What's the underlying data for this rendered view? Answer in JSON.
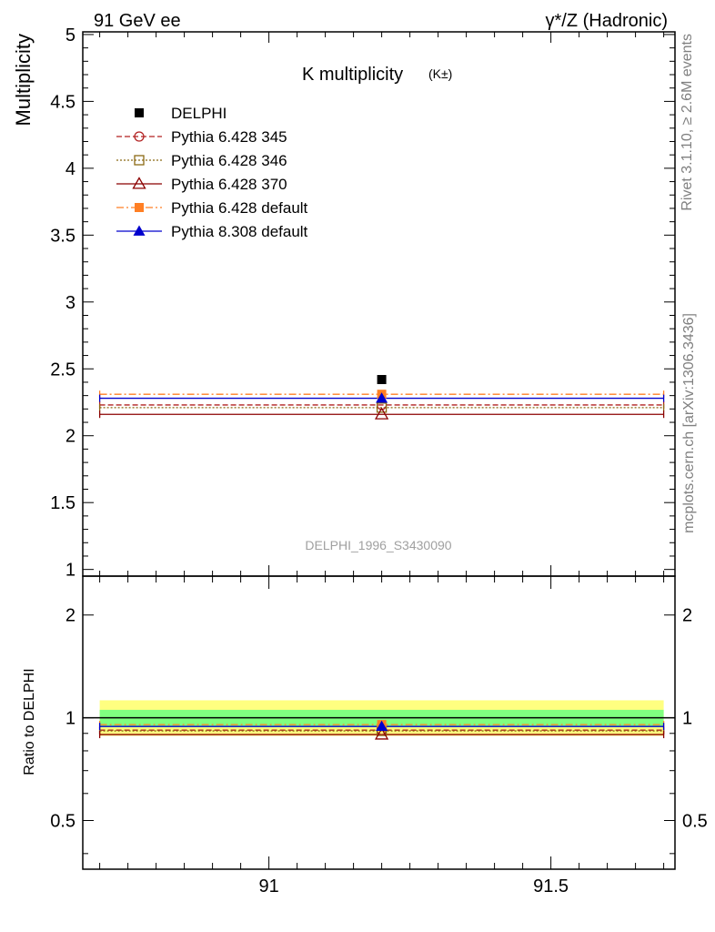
{
  "header": {
    "left": "91 GeV ee",
    "right": "γ*/Z (Hadronic)"
  },
  "side_text": {
    "rivet": "Rivet 3.1.10, ≥ 2.6M events",
    "mcplots": "mcplots.cern.ch [arXiv:1306.3436]"
  },
  "chart_data": [
    {
      "type": "scatter",
      "title": "K multiplicity",
      "title_suffix": "(K±)",
      "watermark": "DELPHI_1996_S3430090",
      "ylabel": "Multiplicity",
      "xlim": [
        90.67,
        91.72
      ],
      "ylim": [
        0.95,
        5.02
      ],
      "y_ticks": [
        "1",
        "1.5",
        "2",
        "2.5",
        "3",
        "3.5",
        "4",
        "4.5",
        "5"
      ],
      "x_bin": [
        90.7,
        91.7
      ],
      "x_center": 91.2,
      "legend_position": "top-left",
      "series": [
        {
          "name": "DELPHI",
          "value": 2.42,
          "color": "#000000",
          "marker": "filled-square",
          "line": "none"
        },
        {
          "name": "Pythia 6.428 345",
          "value": 2.23,
          "color": "#b22222",
          "marker": "open-circle",
          "line": "dashed"
        },
        {
          "name": "Pythia 6.428 346",
          "value": 2.21,
          "color": "#8b6914",
          "marker": "open-square",
          "line": "dotted"
        },
        {
          "name": "Pythia 6.428 370",
          "value": 2.16,
          "color": "#8b0000",
          "marker": "open-triangle",
          "line": "solid"
        },
        {
          "name": "Pythia 6.428 default",
          "value": 2.31,
          "color": "#ff7f24",
          "marker": "filled-square",
          "line": "dashdot"
        },
        {
          "name": "Pythia 8.308 default",
          "value": 2.28,
          "color": "#0000cd",
          "marker": "filled-triangle",
          "line": "solid"
        }
      ]
    },
    {
      "type": "scatter",
      "ylabel": "Ratio to DELPHI",
      "xlim": [
        90.67,
        91.72
      ],
      "ylim": [
        0.36,
        2.6
      ],
      "x_ticks": [
        "91",
        "91.5"
      ],
      "y_ticks": [
        "0.5",
        "1",
        "2"
      ],
      "bands": [
        {
          "name": "yellow",
          "low": 0.885,
          "high": 1.125,
          "color": "#ffff80"
        },
        {
          "name": "green",
          "low": 0.945,
          "high": 1.055,
          "color": "#80ff80"
        }
      ],
      "ratios": [
        {
          "name": "Pythia 6.428 345",
          "value": 0.92
        },
        {
          "name": "Pythia 6.428 346",
          "value": 0.915
        },
        {
          "name": "Pythia 6.428 370",
          "value": 0.893
        },
        {
          "name": "Pythia 6.428 default",
          "value": 0.955
        },
        {
          "name": "Pythia 8.308 default",
          "value": 0.943
        }
      ]
    }
  ]
}
